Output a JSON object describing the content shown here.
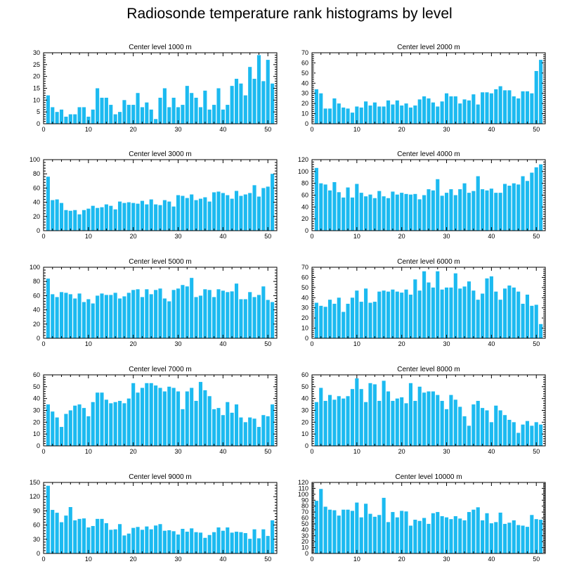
{
  "figure": {
    "title": "Radiosonde temperature rank histograms by level"
  },
  "style": {
    "bar_color": "#1cbaf0",
    "axis_color": "#000000",
    "background": "#ffffff"
  },
  "chart_data": [
    {
      "type": "bar",
      "title": "Center level 1000 m",
      "xlabel": "",
      "ylabel": "",
      "xlim": [
        0,
        52
      ],
      "ylim": [
        0,
        30
      ],
      "xticks": [
        0,
        10,
        20,
        30,
        40,
        50
      ],
      "yticks": [
        0,
        5,
        10,
        15,
        20,
        25,
        30
      ],
      "x": [
        1,
        2,
        3,
        4,
        5,
        6,
        7,
        8,
        9,
        10,
        11,
        12,
        13,
        14,
        15,
        16,
        17,
        18,
        19,
        20,
        21,
        22,
        23,
        24,
        25,
        26,
        27,
        28,
        29,
        30,
        31,
        32,
        33,
        34,
        35,
        36,
        37,
        38,
        39,
        40,
        41,
        42,
        43,
        44,
        45,
        46,
        47,
        48,
        49,
        50,
        51
      ],
      "values": [
        12,
        7,
        5,
        6,
        3,
        4,
        4,
        7,
        7,
        3,
        6,
        15,
        11,
        11,
        8,
        4,
        5,
        10,
        8,
        8,
        13,
        7,
        9,
        6,
        2,
        11,
        15,
        7,
        11,
        7,
        8,
        16,
        13,
        11,
        7,
        14,
        6,
        8,
        15,
        6,
        8,
        16,
        19,
        17,
        12,
        24,
        19,
        29,
        18,
        27,
        17
      ]
    },
    {
      "type": "bar",
      "title": "Center level 2000 m",
      "xlabel": "",
      "ylabel": "",
      "xlim": [
        0,
        52
      ],
      "ylim": [
        0,
        70
      ],
      "xticks": [
        0,
        10,
        20,
        30,
        40,
        50
      ],
      "yticks": [
        0,
        10,
        20,
        30,
        40,
        50,
        60,
        70
      ],
      "x": [
        1,
        2,
        3,
        4,
        5,
        6,
        7,
        8,
        9,
        10,
        11,
        12,
        13,
        14,
        15,
        16,
        17,
        18,
        19,
        20,
        21,
        22,
        23,
        24,
        25,
        26,
        27,
        28,
        29,
        30,
        31,
        32,
        33,
        34,
        35,
        36,
        37,
        38,
        39,
        40,
        41,
        42,
        43,
        44,
        45,
        46,
        47,
        48,
        49,
        50,
        51
      ],
      "values": [
        34,
        30,
        15,
        15,
        25,
        20,
        16,
        15,
        11,
        17,
        16,
        22,
        18,
        21,
        17,
        17,
        23,
        19,
        23,
        18,
        20,
        16,
        18,
        24,
        27,
        25,
        21,
        17,
        22,
        30,
        27,
        27,
        20,
        24,
        23,
        29,
        19,
        31,
        31,
        30,
        34,
        37,
        33,
        33,
        27,
        25,
        32,
        32,
        30,
        52,
        63
      ]
    },
    {
      "type": "bar",
      "title": "Center level 3000 m",
      "xlabel": "",
      "ylabel": "",
      "xlim": [
        0,
        52
      ],
      "ylim": [
        0,
        100
      ],
      "xticks": [
        0,
        10,
        20,
        30,
        40,
        50
      ],
      "yticks": [
        0,
        20,
        40,
        60,
        80,
        100
      ],
      "x": [
        1,
        2,
        3,
        4,
        5,
        6,
        7,
        8,
        9,
        10,
        11,
        12,
        13,
        14,
        15,
        16,
        17,
        18,
        19,
        20,
        21,
        22,
        23,
        24,
        25,
        26,
        27,
        28,
        29,
        30,
        31,
        32,
        33,
        34,
        35,
        36,
        37,
        38,
        39,
        40,
        41,
        42,
        43,
        44,
        45,
        46,
        47,
        48,
        49,
        50,
        51
      ],
      "values": [
        76,
        43,
        44,
        39,
        29,
        28,
        29,
        23,
        29,
        31,
        35,
        32,
        33,
        37,
        35,
        30,
        41,
        39,
        40,
        39,
        38,
        42,
        37,
        44,
        37,
        36,
        43,
        41,
        34,
        50,
        49,
        46,
        51,
        43,
        45,
        47,
        41,
        54,
        55,
        53,
        50,
        45,
        56,
        49,
        51,
        53,
        64,
        48,
        60,
        62,
        80
      ]
    },
    {
      "type": "bar",
      "title": "Center level 4000 m",
      "xlabel": "",
      "ylabel": "",
      "xlim": [
        0,
        52
      ],
      "ylim": [
        0,
        120
      ],
      "xticks": [
        0,
        10,
        20,
        30,
        40,
        50
      ],
      "yticks": [
        0,
        20,
        40,
        60,
        80,
        100,
        120
      ],
      "x": [
        1,
        2,
        3,
        4,
        5,
        6,
        7,
        8,
        9,
        10,
        11,
        12,
        13,
        14,
        15,
        16,
        17,
        18,
        19,
        20,
        21,
        22,
        23,
        24,
        25,
        26,
        27,
        28,
        29,
        30,
        31,
        32,
        33,
        34,
        35,
        36,
        37,
        38,
        39,
        40,
        41,
        42,
        43,
        44,
        45,
        46,
        47,
        48,
        49,
        50,
        51
      ],
      "values": [
        106,
        80,
        78,
        68,
        82,
        65,
        56,
        73,
        56,
        79,
        64,
        58,
        61,
        55,
        67,
        58,
        55,
        66,
        61,
        64,
        62,
        61,
        62,
        53,
        60,
        70,
        68,
        87,
        59,
        64,
        70,
        60,
        70,
        80,
        64,
        67,
        92,
        70,
        68,
        71,
        64,
        64,
        79,
        76,
        80,
        78,
        92,
        84,
        98,
        107,
        112
      ]
    },
    {
      "type": "bar",
      "title": "Center level 5000 m",
      "xlabel": "",
      "ylabel": "",
      "xlim": [
        0,
        52
      ],
      "ylim": [
        0,
        100
      ],
      "xticks": [
        0,
        10,
        20,
        30,
        40,
        50
      ],
      "yticks": [
        0,
        20,
        40,
        60,
        80,
        100
      ],
      "x": [
        1,
        2,
        3,
        4,
        5,
        6,
        7,
        8,
        9,
        10,
        11,
        12,
        13,
        14,
        15,
        16,
        17,
        18,
        19,
        20,
        21,
        22,
        23,
        24,
        25,
        26,
        27,
        28,
        29,
        30,
        31,
        32,
        33,
        34,
        35,
        36,
        37,
        38,
        39,
        40,
        41,
        42,
        43,
        44,
        45,
        46,
        47,
        48,
        49,
        50,
        51
      ],
      "values": [
        84,
        62,
        58,
        65,
        64,
        62,
        56,
        63,
        51,
        55,
        49,
        60,
        63,
        61,
        61,
        64,
        56,
        59,
        64,
        68,
        69,
        58,
        69,
        62,
        68,
        70,
        56,
        52,
        68,
        70,
        75,
        73,
        85,
        58,
        60,
        69,
        68,
        58,
        69,
        67,
        65,
        66,
        77,
        55,
        55,
        65,
        58,
        61,
        73,
        54,
        51
      ]
    },
    {
      "type": "bar",
      "title": "Center level 6000 m",
      "xlabel": "",
      "ylabel": "",
      "xlim": [
        0,
        52
      ],
      "ylim": [
        0,
        70
      ],
      "xticks": [
        0,
        10,
        20,
        30,
        40,
        50
      ],
      "yticks": [
        0,
        10,
        20,
        30,
        40,
        50,
        60,
        70
      ],
      "x": [
        1,
        2,
        3,
        4,
        5,
        6,
        7,
        8,
        9,
        10,
        11,
        12,
        13,
        14,
        15,
        16,
        17,
        18,
        19,
        20,
        21,
        22,
        23,
        24,
        25,
        26,
        27,
        28,
        29,
        30,
        31,
        32,
        33,
        34,
        35,
        36,
        37,
        38,
        39,
        40,
        41,
        42,
        43,
        44,
        45,
        46,
        47,
        48,
        49,
        50,
        51
      ],
      "values": [
        35,
        32,
        31,
        38,
        34,
        40,
        26,
        34,
        40,
        47,
        36,
        49,
        35,
        36,
        46,
        47,
        46,
        48,
        46,
        45,
        48,
        43,
        58,
        47,
        66,
        55,
        50,
        66,
        48,
        50,
        50,
        64,
        49,
        51,
        56,
        47,
        38,
        44,
        59,
        61,
        46,
        38,
        49,
        52,
        50,
        46,
        34,
        43,
        32,
        33,
        14
      ]
    },
    {
      "type": "bar",
      "title": "Center level 7000 m",
      "xlabel": "",
      "ylabel": "",
      "xlim": [
        0,
        52
      ],
      "ylim": [
        0,
        60
      ],
      "xticks": [
        0,
        10,
        20,
        30,
        40,
        50
      ],
      "yticks": [
        0,
        10,
        20,
        30,
        40,
        50,
        60
      ],
      "x": [
        1,
        2,
        3,
        4,
        5,
        6,
        7,
        8,
        9,
        10,
        11,
        12,
        13,
        14,
        15,
        16,
        17,
        18,
        19,
        20,
        21,
        22,
        23,
        24,
        25,
        26,
        27,
        28,
        29,
        30,
        31,
        32,
        33,
        34,
        35,
        36,
        37,
        38,
        39,
        40,
        41,
        42,
        43,
        44,
        45,
        46,
        47,
        48,
        49,
        50,
        51
      ],
      "values": [
        35,
        29,
        24,
        16,
        27,
        30,
        34,
        35,
        32,
        25,
        37,
        45,
        45,
        39,
        36,
        37,
        38,
        36,
        40,
        53,
        45,
        49,
        53,
        53,
        51,
        49,
        46,
        50,
        49,
        46,
        31,
        46,
        49,
        38,
        54,
        47,
        42,
        31,
        32,
        26,
        37,
        28,
        35,
        24,
        20,
        24,
        23,
        16,
        26,
        25,
        35
      ]
    },
    {
      "type": "bar",
      "title": "Center level 8000 m",
      "xlabel": "",
      "ylabel": "",
      "xlim": [
        0,
        52
      ],
      "ylim": [
        0,
        60
      ],
      "xticks": [
        0,
        10,
        20,
        30,
        40,
        50
      ],
      "yticks": [
        0,
        10,
        20,
        30,
        40,
        50,
        60
      ],
      "x": [
        1,
        2,
        3,
        4,
        5,
        6,
        7,
        8,
        9,
        10,
        11,
        12,
        13,
        14,
        15,
        16,
        17,
        18,
        19,
        20,
        21,
        22,
        23,
        24,
        25,
        26,
        27,
        28,
        29,
        30,
        31,
        32,
        33,
        34,
        35,
        36,
        37,
        38,
        39,
        40,
        41,
        42,
        43,
        44,
        45,
        46,
        47,
        48,
        49,
        50,
        51
      ],
      "values": [
        37,
        49,
        38,
        43,
        39,
        42,
        40,
        42,
        48,
        57,
        48,
        37,
        53,
        52,
        38,
        55,
        46,
        38,
        40,
        41,
        36,
        53,
        38,
        50,
        45,
        46,
        46,
        43,
        38,
        31,
        43,
        39,
        33,
        25,
        17,
        35,
        38,
        32,
        30,
        20,
        34,
        30,
        26,
        22,
        20,
        11,
        18,
        21,
        17,
        20,
        18
      ]
    },
    {
      "type": "bar",
      "title": "Center level 9000 m",
      "xlabel": "",
      "ylabel": "",
      "xlim": [
        0,
        52
      ],
      "ylim": [
        0,
        150
      ],
      "xticks": [
        0,
        10,
        20,
        30,
        40,
        50
      ],
      "yticks": [
        0,
        30,
        60,
        90,
        120,
        150
      ],
      "x": [
        1,
        2,
        3,
        4,
        5,
        6,
        7,
        8,
        9,
        10,
        11,
        12,
        13,
        14,
        15,
        16,
        17,
        18,
        19,
        20,
        21,
        22,
        23,
        24,
        25,
        26,
        27,
        28,
        29,
        30,
        31,
        32,
        33,
        34,
        35,
        36,
        37,
        38,
        39,
        40,
        41,
        42,
        43,
        44,
        45,
        46,
        47,
        48,
        49,
        50,
        51
      ],
      "values": [
        143,
        92,
        86,
        66,
        80,
        98,
        70,
        73,
        74,
        55,
        58,
        73,
        73,
        64,
        50,
        51,
        62,
        38,
        42,
        54,
        56,
        50,
        57,
        51,
        59,
        62,
        48,
        49,
        47,
        40,
        52,
        46,
        53,
        45,
        44,
        33,
        39,
        45,
        55,
        48,
        55,
        44,
        46,
        45,
        43,
        31,
        51,
        32,
        51,
        37,
        70
      ]
    },
    {
      "type": "bar",
      "title": "Center level 10000 m",
      "xlabel": "",
      "ylabel": "",
      "xlim": [
        0,
        52
      ],
      "ylim": [
        0,
        120
      ],
      "xticks": [
        0,
        10,
        20,
        30,
        40,
        50
      ],
      "yticks": [
        0,
        10,
        20,
        30,
        40,
        50,
        60,
        70,
        80,
        90,
        100,
        110,
        120
      ],
      "x": [
        1,
        2,
        3,
        4,
        5,
        6,
        7,
        8,
        9,
        10,
        11,
        12,
        13,
        14,
        15,
        16,
        17,
        18,
        19,
        20,
        21,
        22,
        23,
        24,
        25,
        26,
        27,
        28,
        29,
        30,
        31,
        32,
        33,
        34,
        35,
        36,
        37,
        38,
        39,
        40,
        41,
        42,
        43,
        44,
        45,
        46,
        47,
        48,
        49,
        50,
        51
      ],
      "values": [
        89,
        109,
        79,
        74,
        73,
        64,
        74,
        74,
        72,
        86,
        61,
        84,
        67,
        62,
        65,
        94,
        53,
        70,
        61,
        72,
        71,
        47,
        57,
        55,
        60,
        50,
        68,
        70,
        63,
        61,
        58,
        63,
        59,
        56,
        70,
        74,
        78,
        56,
        68,
        51,
        53,
        69,
        50,
        52,
        56,
        48,
        47,
        45,
        65,
        58,
        57
      ]
    }
  ]
}
